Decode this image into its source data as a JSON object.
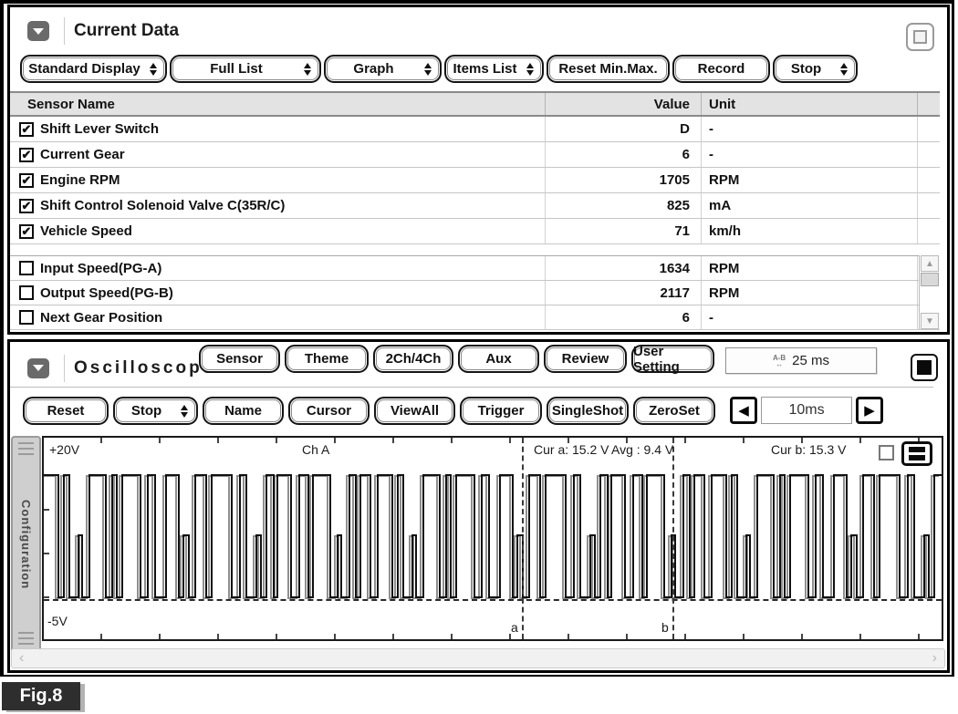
{
  "figure": {
    "label": "Fig.8"
  },
  "icons": {
    "collapse": "chevron-down",
    "dropdown_spinner": "up-down-triangles",
    "restore": "empty-square",
    "stop_square": "filled-square",
    "bars_button": "two-bars",
    "check": "✔",
    "scroll_up": "▲",
    "scroll_down": "▼",
    "scroll_left": "‹",
    "scroll_right": "›",
    "step_left": "◀",
    "step_right": "▶",
    "ab_top": "A-B",
    "ab_bottom": "↔"
  },
  "current_data": {
    "title": "Current Data",
    "toolbar": [
      {
        "label": "Standard Display",
        "dropdown": true
      },
      {
        "label": "Full List",
        "dropdown": true
      },
      {
        "label": "Graph",
        "dropdown": true
      },
      {
        "label": "Items List",
        "dropdown": true
      },
      {
        "label": "Reset Min.Max.",
        "dropdown": false
      },
      {
        "label": "Record",
        "dropdown": false
      },
      {
        "label": "Stop",
        "dropdown": true
      }
    ],
    "table": {
      "headers": {
        "name": "Sensor Name",
        "value": "Value",
        "unit": "Unit"
      },
      "pinned_rows": [
        {
          "checked": true,
          "name": "Shift Lever Switch",
          "value": "D",
          "unit": "-"
        },
        {
          "checked": true,
          "name": "Current Gear",
          "value": "6",
          "unit": "-"
        },
        {
          "checked": true,
          "name": "Engine RPM",
          "value": "1705",
          "unit": "RPM"
        },
        {
          "checked": true,
          "name": "Shift Control Solenoid Valve C(35R/C)",
          "value": "825",
          "unit": "mA"
        },
        {
          "checked": true,
          "name": "Vehicle Speed",
          "value": "71",
          "unit": "km/h"
        }
      ],
      "scroll_rows": [
        {
          "checked": false,
          "name": "Input Speed(PG-A)",
          "value": "1634",
          "unit": "RPM"
        },
        {
          "checked": false,
          "name": "Output Speed(PG-B)",
          "value": "2117",
          "unit": "RPM"
        },
        {
          "checked": false,
          "name": "Next Gear Position",
          "value": "6",
          "unit": "-"
        }
      ]
    }
  },
  "oscilloscope": {
    "title": "Oscilloscope",
    "toolbar_top": [
      {
        "label": "Sensor"
      },
      {
        "label": "Theme"
      },
      {
        "label": "2Ch/4Ch"
      },
      {
        "label": "Aux"
      },
      {
        "label": "Review"
      },
      {
        "label": "User Setting"
      }
    ],
    "ab_readout": "25 ms",
    "toolbar_bottom": [
      {
        "label": "Reset",
        "dropdown": false
      },
      {
        "label": "Stop",
        "dropdown": true
      },
      {
        "label": "Name",
        "dropdown": false
      },
      {
        "label": "Cursor",
        "dropdown": false
      },
      {
        "label": "ViewAll",
        "dropdown": false
      },
      {
        "label": "Trigger",
        "dropdown": false
      },
      {
        "label": "SingleShot",
        "dropdown": false
      },
      {
        "label": "ZeroSet",
        "dropdown": false
      }
    ],
    "timebase": "10ms",
    "sidebar_tab": "Configuration",
    "display": {
      "top_label": "+20V",
      "bottom_label": "-5V",
      "channel": "Ch A",
      "cursor_a": "Cur a: 15.2 V",
      "avg": "Avg : 9.4 V",
      "cursor_b": "Cur b: 15.3 V",
      "mark_a": "a",
      "mark_b": "b",
      "waveform": {
        "levels": {
          "h": 41,
          "m": 107,
          "l": 175
        },
        "segments": [
          [
            "h",
            16
          ],
          [
            "l",
            6
          ],
          [
            "h",
            6
          ],
          [
            "l",
            10
          ],
          [
            "m",
            4
          ],
          [
            "l",
            8
          ],
          [
            "h",
            18
          ],
          [
            "l",
            7
          ],
          [
            "h",
            5
          ],
          [
            "l",
            6
          ],
          [
            "h",
            20
          ],
          [
            "l",
            8
          ],
          [
            "h",
            8
          ],
          [
            "l",
            12
          ],
          [
            "h",
            14
          ],
          [
            "l",
            5
          ],
          [
            "m",
            6
          ],
          [
            "l",
            7
          ],
          [
            "h",
            12
          ],
          [
            "l",
            6
          ],
          [
            "h",
            22
          ],
          [
            "l",
            9
          ],
          [
            "h",
            7
          ],
          [
            "l",
            11
          ],
          [
            "m",
            5
          ],
          [
            "l",
            6
          ],
          [
            "h",
            8
          ],
          [
            "l",
            4
          ],
          [
            "h",
            15
          ],
          [
            "l",
            9
          ],
          [
            "h",
            10
          ],
          [
            "l",
            5
          ],
          [
            "h",
            19
          ],
          [
            "l",
            8
          ],
          [
            "m",
            4
          ],
          [
            "l",
            9
          ],
          [
            "h",
            7
          ],
          [
            "l",
            5
          ],
          [
            "h",
            11
          ],
          [
            "l",
            8
          ]
        ]
      }
    }
  }
}
